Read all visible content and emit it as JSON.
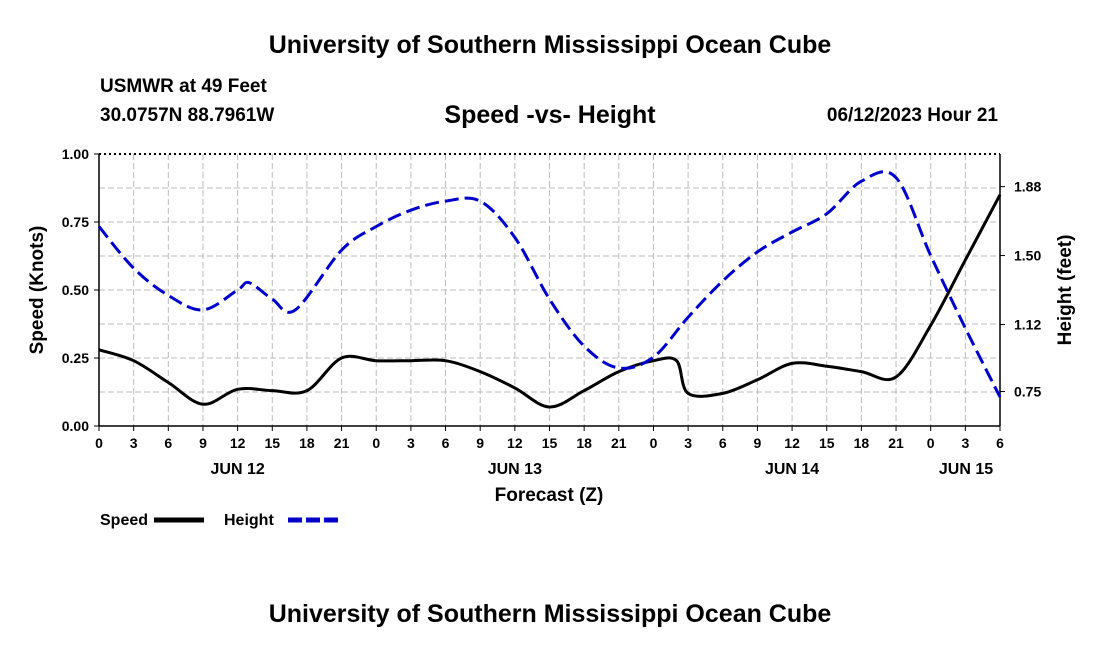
{
  "header": {
    "title": "University of Southern Mississippi Ocean Cube",
    "station": "USMWR at 49 Feet",
    "coords": "30.0757N  88.7961W",
    "date": "06/12/2023 Hour 21"
  },
  "footer": {
    "title": "University of Southern Mississippi Ocean Cube"
  },
  "chart_data": {
    "type": "line",
    "title": "Speed -vs- Height",
    "xlabel": "Forecast (Z)",
    "ylabel": "Speed (Knots)",
    "y2label": "Height (feet)",
    "ylim": [
      0,
      1.0
    ],
    "y2lim": [
      0.56,
      2.06
    ],
    "xlim": [
      0,
      78
    ],
    "grid": true,
    "legend_position": "bottom-left",
    "x_tick_labels": [
      "0",
      "3",
      "6",
      "9",
      "12",
      "15",
      "18",
      "21",
      "0",
      "3",
      "6",
      "9",
      "12",
      "15",
      "18",
      "21",
      "0",
      "3",
      "6",
      "9",
      "12",
      "15",
      "18",
      "21",
      "0",
      "3",
      "6"
    ],
    "day_labels": [
      {
        "label": "JUN 12",
        "hour": 12
      },
      {
        "label": "JUN 13",
        "hour": 36
      },
      {
        "label": "JUN 14",
        "hour": 60
      },
      {
        "label": "JUN 15",
        "hour": 78
      }
    ],
    "y_ticks": [
      0.0,
      0.25,
      0.5,
      0.75,
      1.0
    ],
    "y_tick_labels": [
      "0.00",
      "0.25",
      "0.50",
      "0.75",
      "1.00"
    ],
    "y2_ticks": [
      0.75,
      1.12,
      1.5,
      1.88
    ],
    "y2_tick_labels": [
      "0.75",
      "1.12",
      "1.50",
      "1.88"
    ],
    "series": [
      {
        "name": "Speed",
        "axis": "left",
        "color": "#000000",
        "dash": "solid",
        "x": [
          0,
          3,
          6,
          9,
          12,
          15,
          18,
          21,
          24,
          27,
          30,
          33,
          36,
          39,
          42,
          45,
          48,
          50,
          51,
          54,
          57,
          60,
          63,
          66,
          69,
          72,
          75,
          78
        ],
        "y": [
          0.28,
          0.24,
          0.16,
          0.08,
          0.135,
          0.13,
          0.13,
          0.25,
          0.24,
          0.24,
          0.24,
          0.2,
          0.14,
          0.07,
          0.13,
          0.2,
          0.24,
          0.24,
          0.12,
          0.12,
          0.17,
          0.23,
          0.22,
          0.2,
          0.18,
          0.37,
          0.61,
          0.85
        ]
      },
      {
        "name": "Height",
        "axis": "right",
        "color": "#0000cc",
        "dash": "dashed",
        "x": [
          0,
          3,
          6,
          9,
          12,
          13,
          15,
          17,
          21,
          24,
          27,
          30,
          33,
          36,
          39,
          42,
          45,
          48,
          51,
          54,
          57,
          60,
          63,
          66,
          69,
          72,
          75,
          78
        ],
        "y": [
          1.66,
          1.43,
          1.28,
          1.2,
          1.31,
          1.35,
          1.26,
          1.2,
          1.53,
          1.66,
          1.75,
          1.8,
          1.8,
          1.6,
          1.26,
          1.0,
          0.88,
          0.94,
          1.16,
          1.36,
          1.52,
          1.63,
          1.73,
          1.91,
          1.93,
          1.5,
          1.1,
          0.72
        ]
      }
    ]
  }
}
